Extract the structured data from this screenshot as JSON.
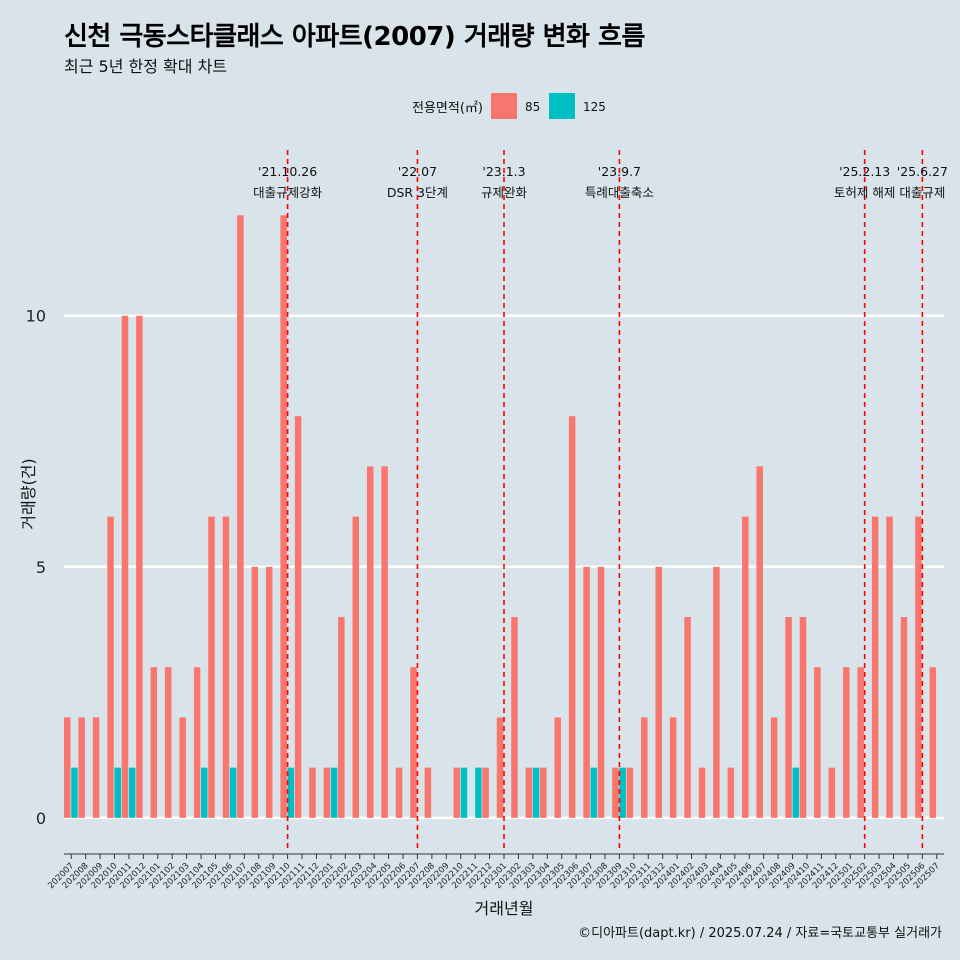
{
  "title": "신천 극동스타클래스 아파트(2007) 거래량 변화 흐름",
  "subtitle": "최근 5년 한정 확대 차트",
  "caption": "©디아파트(dapt.kr) / 2025.07.24 / 자료=국토교통부 실거래가",
  "colors": {
    "s85": "#F8766D",
    "s125": "#00BFC4",
    "vline": "#FF0000",
    "background": "#D8E4EA"
  },
  "chart_data": {
    "type": "bar",
    "xlabel": "거래년월",
    "ylabel": "거래량(건)",
    "ylim": [
      -0.6,
      13.5
    ],
    "yticks": [
      0,
      5,
      10
    ],
    "grid": true,
    "legend": {
      "title": "전용면적(㎡)",
      "position": "top",
      "entries": [
        "85",
        "125"
      ]
    },
    "categories": [
      "202007",
      "202008",
      "202009",
      "202010",
      "202011",
      "202012",
      "202101",
      "202102",
      "202103",
      "202104",
      "202105",
      "202106",
      "202107",
      "202108",
      "202109",
      "202110",
      "202111",
      "202112",
      "202201",
      "202202",
      "202203",
      "202204",
      "202205",
      "202206",
      "202207",
      "202208",
      "202209",
      "202210",
      "202211",
      "202212",
      "202301",
      "202302",
      "202303",
      "202304",
      "202305",
      "202306",
      "202307",
      "202308",
      "202309",
      "202310",
      "202311",
      "202312",
      "202401",
      "202402",
      "202403",
      "202404",
      "202405",
      "202406",
      "202407",
      "202408",
      "202409",
      "202410",
      "202411",
      "202412",
      "202501",
      "202502",
      "202503",
      "202504",
      "202505",
      "202506",
      "202507"
    ],
    "series": [
      {
        "name": "85",
        "values": [
          2,
          2,
          2,
          6,
          10,
          10,
          3,
          3,
          2,
          3,
          6,
          6,
          12,
          5,
          5,
          12,
          8,
          1,
          1,
          4,
          6,
          7,
          7,
          1,
          3,
          1,
          0,
          1,
          0,
          1,
          2,
          4,
          1,
          1,
          2,
          8,
          5,
          5,
          1,
          1,
          2,
          5,
          2,
          4,
          1,
          5,
          1,
          6,
          7,
          2,
          4,
          4,
          3,
          1,
          3,
          3,
          6,
          6,
          4,
          6,
          3
        ]
      },
      {
        "name": "125",
        "values": [
          1,
          0,
          0,
          1,
          1,
          0,
          0,
          0,
          0,
          1,
          0,
          1,
          0,
          0,
          0,
          1,
          0,
          0,
          1,
          0,
          0,
          0,
          0,
          0,
          0,
          0,
          0,
          1,
          1,
          0,
          0,
          0,
          1,
          0,
          0,
          0,
          1,
          0,
          1,
          0,
          0,
          0,
          0,
          0,
          0,
          0,
          0,
          0,
          0,
          0,
          1,
          0,
          0,
          0,
          0,
          0,
          0,
          0,
          0,
          0,
          0
        ]
      }
    ],
    "annotations": [
      {
        "x": "202110",
        "date": "'21.10.26",
        "label": "대출규제강화"
      },
      {
        "x": "202207",
        "date": "'22.07",
        "label": "DSR 3단계"
      },
      {
        "x": "202301",
        "date": "'23.1.3",
        "label": "규제완화"
      },
      {
        "x": "202309",
        "date": "'23.9.7",
        "label": "특례대출축소"
      },
      {
        "x": "202502",
        "date": "'25.2.13",
        "label": "토허제 해제"
      },
      {
        "x": "202506",
        "date": "'25.6.27",
        "label": "대출규제"
      }
    ]
  }
}
